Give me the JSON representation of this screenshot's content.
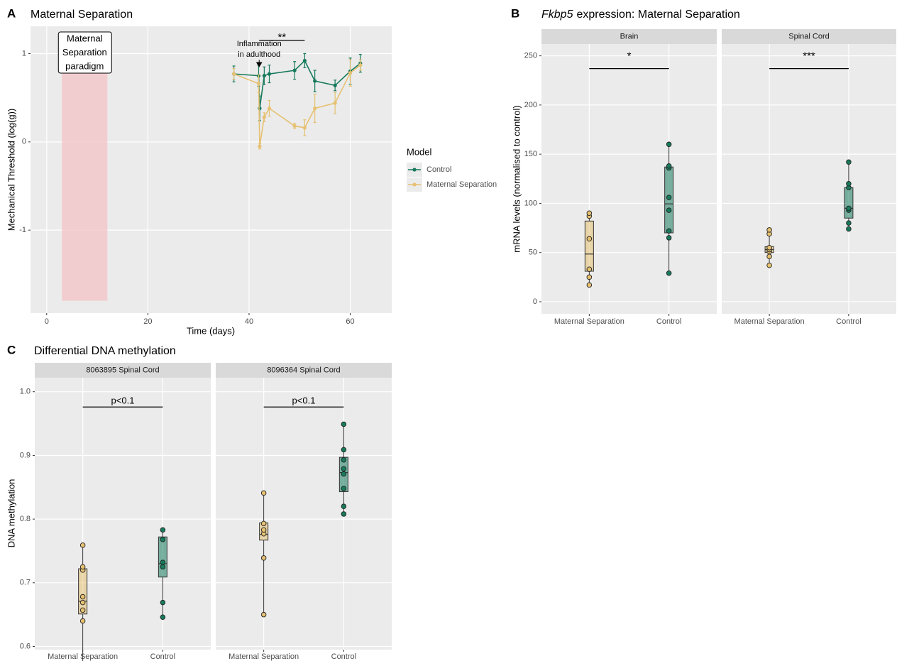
{
  "chart_data": [
    {
      "type": "line",
      "panel": "A",
      "title": "Maternal Separation",
      "xlabel": "Time (days)",
      "ylabel": "Mechanical Threshold (log(g))",
      "xlim": [
        -3.2,
        68.2
      ],
      "ylim": [
        -1.94,
        1.31
      ],
      "xticks": [
        0,
        20,
        40,
        60
      ],
      "yticks": [
        -1,
        0,
        1
      ],
      "grid": true,
      "legend_title": "Model",
      "legend": "right",
      "series": [
        {
          "name": "Control",
          "color": "#177a5c",
          "x": [
            37,
            41.9,
            42.1,
            43,
            44,
            49,
            51,
            53,
            57,
            60,
            62
          ],
          "values": [
            0.77,
            0.75,
            0.38,
            0.75,
            0.77,
            0.81,
            0.92,
            0.69,
            0.64,
            0.8,
            0.89
          ],
          "errors": [
            0.09,
            0.12,
            0.14,
            0.1,
            0.1,
            0.1,
            0.08,
            0.12,
            0.06,
            0.15,
            0.1
          ]
        },
        {
          "name": "Maternal Separation",
          "color": "#e6c172",
          "x": [
            37,
            41.9,
            42.1,
            43,
            44,
            49,
            51,
            53,
            57,
            60,
            62
          ],
          "values": [
            0.77,
            0.66,
            -0.05,
            0.28,
            0.38,
            0.18,
            0.16,
            0.38,
            0.44,
            0.78,
            0.87
          ],
          "errors": [
            0.06,
            0.1,
            0.03,
            0.05,
            0.09,
            0.03,
            0.09,
            0.16,
            0.12,
            0.15,
            0.06
          ]
        }
      ],
      "shade": {
        "x": [
          3,
          12
        ],
        "y": [
          -1.8,
          0.8
        ],
        "label": [
          "Maternal",
          "Separation",
          "paradigm"
        ]
      },
      "arrow": {
        "x": 42,
        "y": [
          0.93,
          0.86
        ],
        "label": [
          "Inflammation",
          "in adulthood"
        ]
      },
      "significance": {
        "label": "**",
        "x": [
          42,
          51
        ],
        "y": 1.15
      }
    },
    {
      "type": "violin",
      "panel": "B",
      "title_italic": "Fkbp5",
      "title": "expression: Maternal Separation",
      "ylabel": "mRNA levels (normalised to control)",
      "ylim": [
        -12.3,
        262
      ],
      "yticks": [
        0,
        50,
        100,
        150,
        200,
        250
      ],
      "grid": true,
      "categories": [
        "Maternal Separation",
        "Control"
      ],
      "colors": [
        "#e6c172",
        "#177a5c"
      ],
      "facets": [
        {
          "name": "Brain",
          "significance": {
            "label": "*",
            "y": 237
          },
          "groups": [
            {
              "values": [
                17,
                25,
                33,
                64,
                87,
                90
              ],
              "box": [
                31,
                48.5,
                82
              ]
            },
            {
              "values": [
                29,
                65,
                72,
                93,
                106,
                136,
                138,
                160
              ],
              "box": [
                70,
                99.5,
                137
              ]
            }
          ]
        },
        {
          "name": "Spinal Cord",
          "significance": {
            "label": "***",
            "y": 237
          },
          "groups": [
            {
              "values": [
                37,
                46,
                51,
                53,
                55,
                69,
                73
              ],
              "box": [
                50,
                53,
                56
              ]
            },
            {
              "values": [
                74,
                80,
                93,
                95,
                116,
                120,
                142
              ],
              "box": [
                85,
                95,
                116
              ]
            }
          ]
        }
      ]
    },
    {
      "type": "violin",
      "panel": "C",
      "title": "Differential DNA methylation",
      "ylabel": "DNA methylation",
      "ylim": [
        0.595,
        1.022
      ],
      "yticks": [
        0.6,
        0.7,
        0.8,
        0.9,
        {
          "value": 1,
          "label": "1.0"
        }
      ],
      "grid": true,
      "categories": [
        "Maternal Separation",
        "Control"
      ],
      "colors": [
        "#e6c172",
        "#177a5c"
      ],
      "facets": [
        {
          "name": "8063895 Spinal Cord",
          "significance": {
            "label": "p<0.1",
            "y": 0.976
          },
          "groups": [
            {
              "values": [
                0.559,
                0.64,
                0.657,
                0.669,
                0.678,
                0.72,
                0.725,
                0.759
              ],
              "box": [
                0.651,
                0.671,
                0.722
              ]
            },
            {
              "values": [
                0.646,
                0.669,
                0.725,
                0.732,
                0.768,
                0.783
              ],
              "box": [
                0.709,
                0.73,
                0.772
              ]
            }
          ]
        },
        {
          "name": "8096364 Spinal Cord",
          "significance": {
            "label": "p<0.1",
            "y": 0.976
          },
          "groups": [
            {
              "values": [
                0.65,
                0.739,
                0.777,
                0.783,
                0.793,
                0.841
              ],
              "box": [
                0.767,
                0.776,
                0.794
              ]
            },
            {
              "values": [
                0.808,
                0.82,
                0.848,
                0.871,
                0.879,
                0.893,
                0.909,
                0.949
              ],
              "box": [
                0.843,
                0.873,
                0.897
              ]
            }
          ]
        }
      ]
    }
  ]
}
